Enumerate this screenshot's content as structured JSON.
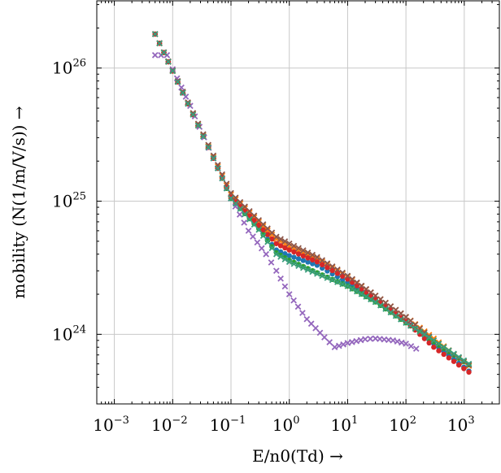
{
  "chart_data": {
    "type": "scatter",
    "xscale": "log",
    "yscale": "log",
    "xlim": [
      0.0005,
      4000
    ],
    "ylim": [
      3e+23,
      3.2e+26
    ],
    "grid": true,
    "xlabel": "E/n0(Td) →",
    "ylabel": "mobility (N(1/m/V/s)) →",
    "x_ticks": [
      {
        "base": "10",
        "exp": "−3",
        "value": 0.001
      },
      {
        "base": "10",
        "exp": "−2",
        "value": 0.01
      },
      {
        "base": "10",
        "exp": "−1",
        "value": 0.1
      },
      {
        "base": "10",
        "exp": "0",
        "value": 1
      },
      {
        "base": "10",
        "exp": "1",
        "value": 10
      },
      {
        "base": "10",
        "exp": "2",
        "value": 100
      },
      {
        "base": "10",
        "exp": "3",
        "value": 1000
      }
    ],
    "y_ticks": [
      {
        "base": "10",
        "exp": "24",
        "value": 1e+24
      },
      {
        "base": "10",
        "exp": "25",
        "value": 1e+25
      },
      {
        "base": "10",
        "exp": "26",
        "value": 1e+26
      }
    ],
    "series": [
      {
        "color": "#1f77b4",
        "marker": "circle",
        "x": [
          0.005,
          0.01,
          0.05,
          0.1,
          0.3,
          0.6,
          1,
          3,
          10,
          30,
          100,
          300,
          1200
        ],
        "y": [
          1.8e+26,
          9.5e+25,
          2.1e+25,
          1.05e+25,
          6.3e+24,
          4.3e+24,
          3.9e+24,
          3.3e+24,
          2.45e+24,
          1.8e+24,
          1.25e+24,
          8.5e+23,
          5.3e+23
        ]
      },
      {
        "color": "#ff7f0e",
        "marker": "x",
        "x": [
          0.005,
          0.01,
          0.05,
          0.1,
          0.3,
          0.6,
          1,
          3,
          10,
          30,
          100,
          300,
          1200
        ],
        "y": [
          1.8e+26,
          9.5e+25,
          2.15e+25,
          1.12e+25,
          7e+24,
          5.2e+24,
          4.6e+24,
          3.7e+24,
          2.7e+24,
          1.95e+24,
          1.35e+24,
          9.3e+23,
          5.8e+23
        ]
      },
      {
        "color": "#2ca02c",
        "marker": "circle",
        "x": [
          0.005,
          0.01,
          0.05,
          0.1,
          0.3,
          0.6,
          1,
          3,
          10,
          30,
          100,
          300,
          1200
        ],
        "y": [
          1.8e+26,
          9.5e+25,
          2.1e+25,
          1.05e+25,
          6.2e+24,
          4.1e+24,
          3.6e+24,
          2.9e+24,
          2.3e+24,
          1.75e+24,
          1.22e+24,
          8.8e+23,
          5.9e+23
        ]
      },
      {
        "color": "#d62728",
        "marker": "circle",
        "x": [
          0.005,
          0.01,
          0.05,
          0.1,
          0.3,
          0.6,
          1,
          3,
          10,
          30,
          100,
          300,
          1200
        ],
        "y": [
          1.8e+26,
          9.5e+25,
          2.1e+25,
          1.07e+25,
          6.6e+24,
          4.8e+24,
          4.3e+24,
          3.5e+24,
          2.6e+24,
          1.85e+24,
          1.25e+24,
          8e+23,
          5.2e+23
        ]
      },
      {
        "color": "#9467bd",
        "marker": "x",
        "x": [
          0.005,
          0.008,
          0.01,
          0.02,
          0.05,
          0.1,
          0.2,
          0.4,
          0.6,
          1,
          2,
          4,
          6,
          10,
          20,
          30,
          60,
          100,
          150
        ],
        "y": [
          1.25e+26,
          1.25e+26,
          9.8e+25,
          5.2e+25,
          2.1e+25,
          1.05e+25,
          6e+24,
          4e+24,
          3e+24,
          2e+24,
          1.3e+24,
          9.5e+23,
          8e+23,
          8.6e+23,
          9.2e+23,
          9.3e+23,
          9e+23,
          8.5e+23,
          7.8e+23
        ]
      },
      {
        "color": "#8c564b",
        "marker": "x",
        "x": [
          0.005,
          0.01,
          0.05,
          0.1,
          0.3,
          0.6,
          1,
          3,
          10,
          30,
          100,
          300,
          1200
        ],
        "y": [
          1.8e+26,
          9.6e+25,
          2.2e+25,
          1.15e+25,
          7.2e+24,
          5.4e+24,
          4.8e+24,
          3.8e+24,
          2.75e+24,
          1.95e+24,
          1.35e+24,
          9e+23,
          5.9e+23
        ]
      },
      {
        "color": "#3a9d7d",
        "marker": "x",
        "x": [
          0.005,
          0.01,
          0.05,
          0.1,
          0.3,
          0.6,
          1,
          3,
          10,
          30,
          100,
          300,
          1200
        ],
        "y": [
          1.8e+26,
          9.5e+25,
          2.1e+25,
          1.05e+25,
          6.1e+24,
          4e+24,
          3.5e+24,
          2.85e+24,
          2.3e+24,
          1.75e+24,
          1.22e+24,
          9e+23,
          6e+23
        ]
      }
    ]
  }
}
